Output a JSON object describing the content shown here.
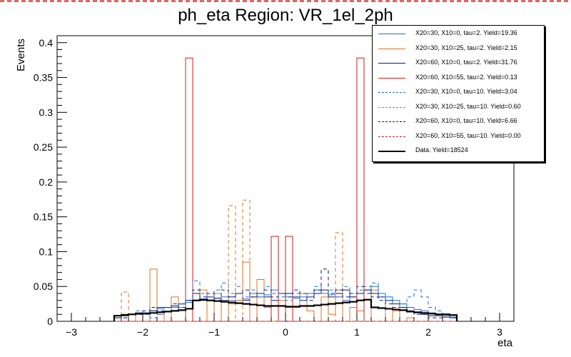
{
  "chart_data": {
    "type": "histogram",
    "title": "ph_eta Region: VR_1el_2ph",
    "xlabel": "eta",
    "ylabel": "Events",
    "xlim": [
      -3.2,
      3.2
    ],
    "ylim": [
      0,
      0.41
    ],
    "xticks": [
      "−3",
      "−2",
      "−1",
      "0",
      "1",
      "2",
      "3"
    ],
    "xtick_values": [
      -3,
      -2,
      -1,
      0,
      1,
      2,
      3
    ],
    "yticks": [
      "0",
      "0.05",
      "0.1",
      "0.15",
      "0.2",
      "0.25",
      "0.3",
      "0.35",
      "0.4"
    ],
    "ytick_values": [
      0,
      0.05,
      0.1,
      0.15,
      0.2,
      0.25,
      0.3,
      0.35,
      0.4
    ],
    "bin_edges_start": -2.4,
    "bin_width": 0.1,
    "series": [
      {
        "name": "X20=30, X10=0, tau=2. Yield=19.36",
        "color": "#1f6fd6",
        "dash": false,
        "width": 1,
        "values": [
          0.005,
          0.01,
          0.01,
          0.012,
          0.012,
          0.015,
          0.018,
          0.02,
          0.02,
          0.025,
          0.027,
          0.03,
          0.032,
          0.03,
          0.033,
          0.035,
          0.03,
          0.03,
          0.032,
          0.04,
          0.035,
          0.038,
          0.045,
          0.04,
          0.035,
          0.033,
          0.035,
          0.04,
          0.045,
          0.04,
          0.038,
          0.035,
          0.03,
          0.035,
          0.04,
          0.045,
          0.05,
          0.04,
          0.035,
          0.03,
          0.025,
          0.02,
          0.017,
          0.015,
          0.012,
          0.01,
          0.008,
          0.006
        ]
      },
      {
        "name": "X20=30, X10=25, tau=2. Yield=2.15",
        "color": "#e07020",
        "dash": false,
        "width": 1,
        "values": [
          0.0,
          0.01,
          0.0,
          0.01,
          0.0,
          0.075,
          0.01,
          0.0,
          0.035,
          0.02,
          0.0,
          0.03,
          0.045,
          0.0,
          0.04,
          0.0,
          0.025,
          0.03,
          0.085,
          0.0,
          0.06,
          0.02,
          0.0,
          0.03,
          0.02,
          0.02,
          0.04,
          0.015,
          0.0,
          0.035,
          0.01,
          0.045,
          0.0,
          0.02,
          0.015,
          0.0,
          0.045,
          0.035,
          0.0,
          0.015,
          0.0,
          0.005,
          0.0,
          0.0,
          0.0,
          0.0,
          0.0,
          0.0
        ]
      },
      {
        "name": "X20=60, X10=0, tau=2. Yield=31.76",
        "color": "#0c1b6e",
        "dash": false,
        "width": 1,
        "values": [
          0.005,
          0.008,
          0.01,
          0.012,
          0.012,
          0.015,
          0.02,
          0.02,
          0.022,
          0.025,
          0.03,
          0.04,
          0.03,
          0.035,
          0.033,
          0.03,
          0.035,
          0.04,
          0.03,
          0.035,
          0.04,
          0.035,
          0.03,
          0.04,
          0.04,
          0.035,
          0.03,
          0.035,
          0.04,
          0.045,
          0.035,
          0.04,
          0.045,
          0.035,
          0.04,
          0.045,
          0.04,
          0.035,
          0.03,
          0.025,
          0.02,
          0.015,
          0.012,
          0.01,
          0.008,
          0.008,
          0.006,
          0.005
        ]
      },
      {
        "name": "X20=60, X10=55, tau=2. Yield=0.13",
        "color": "#d41919",
        "dash": false,
        "width": 1,
        "values": [
          0,
          0,
          0,
          0,
          0,
          0,
          0,
          0,
          0,
          0,
          0.378,
          0,
          0,
          0,
          0,
          0,
          0,
          0,
          0,
          0,
          0,
          0,
          0.122,
          0,
          0.122,
          0,
          0,
          0,
          0,
          0,
          0,
          0,
          0,
          0,
          0.378,
          0,
          0,
          0,
          0,
          0,
          0,
          0,
          0,
          0,
          0,
          0,
          0,
          0
        ]
      },
      {
        "name": "X20=30, X10=0, tau=10. Yield=3.04",
        "color": "#1f6fd6",
        "dash": true,
        "width": 1,
        "values": [
          0.0,
          0.005,
          0.01,
          0.015,
          0.01,
          0.005,
          0.01,
          0.02,
          0.015,
          0.025,
          0.03,
          0.058,
          0.04,
          0.035,
          0.045,
          0.055,
          0.04,
          0.05,
          0.035,
          0.045,
          0.035,
          0.05,
          0.04,
          0.035,
          0.03,
          0.04,
          0.03,
          0.035,
          0.05,
          0.04,
          0.045,
          0.035,
          0.05,
          0.04,
          0.045,
          0.05,
          0.055,
          0.035,
          0.03,
          0.02,
          0.025,
          0.035,
          0.045,
          0.035,
          0.02,
          0.015,
          0.01,
          0.005
        ]
      },
      {
        "name": "X20=30, X10=25, tau=10. Yield=0.60",
        "color": "#e07020",
        "dash": true,
        "width": 1,
        "values": [
          0.0,
          0.042,
          0.0,
          0.0,
          0.0,
          0.0,
          0.0,
          0.0,
          0.0,
          0.0,
          0.0,
          0.0,
          0.0,
          0.0,
          0.0,
          0.0,
          0.166,
          0.0,
          0.174,
          0.0,
          0.0,
          0.0,
          0.0,
          0.0,
          0.0,
          0.0,
          0.0,
          0.0,
          0.0,
          0.0,
          0.0,
          0.127,
          0.0,
          0.0,
          0.0,
          0.0,
          0.0,
          0.0,
          0.0,
          0.0,
          0.0,
          0.0,
          0.0,
          0.0,
          0.0,
          0.0,
          0.0,
          0.0
        ]
      },
      {
        "name": "X20=60, X10=0, tau=10. Yield=6.66",
        "color": "#0c1b6e",
        "dash": true,
        "width": 1,
        "values": [
          0,
          0.005,
          0.01,
          0.01,
          0.015,
          0.02,
          0.015,
          0.02,
          0.025,
          0.02,
          0.03,
          0.045,
          0.035,
          0.04,
          0.03,
          0.045,
          0.035,
          0.04,
          0.045,
          0.035,
          0.04,
          0.045,
          0.035,
          0.04,
          0.035,
          0.045,
          0.04,
          0.03,
          0.045,
          0.075,
          0.04,
          0.045,
          0.035,
          0.04,
          0.05,
          0.04,
          0.035,
          0.03,
          0.025,
          0.02,
          0.02,
          0.015,
          0.01,
          0.01,
          0.005,
          0.005,
          0,
          0
        ]
      },
      {
        "name": "X20=60, X10=55, tau=10. Yield=0.00",
        "color": "#d41919",
        "dash": true,
        "width": 1,
        "values": [
          0,
          0,
          0,
          0,
          0,
          0,
          0,
          0,
          0,
          0,
          0,
          0,
          0,
          0,
          0,
          0,
          0,
          0,
          0,
          0,
          0,
          0,
          0,
          0,
          0,
          0,
          0,
          0,
          0,
          0,
          0,
          0,
          0,
          0,
          0,
          0,
          0,
          0,
          0,
          0,
          0,
          0,
          0,
          0,
          0,
          0,
          0,
          0
        ]
      },
      {
        "name": "Data. Yield=18524",
        "color": "#000000",
        "dash": false,
        "width": 2.2,
        "values": [
          0.008,
          0.009,
          0.01,
          0.011,
          0.011,
          0.012,
          0.013,
          0.014,
          0.015,
          0.016,
          0.018,
          0.03,
          0.031,
          0.03,
          0.029,
          0.028,
          0.027,
          0.026,
          0.025,
          0.024,
          0.023,
          0.022,
          0.022,
          0.022,
          0.021,
          0.021,
          0.022,
          0.022,
          0.023,
          0.024,
          0.025,
          0.026,
          0.027,
          0.028,
          0.03,
          0.031,
          0.02,
          0.019,
          0.018,
          0.017,
          0.016,
          0.014,
          0.013,
          0.012,
          0.011,
          0.01,
          0.01,
          0.009
        ]
      }
    ]
  }
}
